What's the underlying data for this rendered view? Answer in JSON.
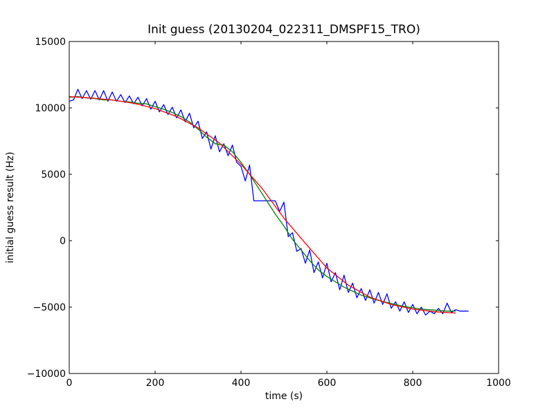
{
  "chart_data": {
    "type": "line",
    "title": "Init guess (20130204_022311_DMSPF15_TRO)",
    "xlabel": "time (s)",
    "ylabel": "initial guess result (Hz)",
    "xlim": [
      0,
      1000
    ],
    "ylim": [
      -10000,
      15000
    ],
    "xticks": [
      0,
      200,
      400,
      600,
      800,
      1000
    ],
    "yticks": [
      -10000,
      -5000,
      0,
      5000,
      10000,
      15000
    ],
    "xtick_labels": [
      "0",
      "200",
      "400",
      "600",
      "800",
      "1000"
    ],
    "ytick_labels": [
      "−10000",
      "−5000",
      "0",
      "5000",
      "10000",
      "15000"
    ],
    "grid": false,
    "legend": "none",
    "series": [
      {
        "color": "#0000ff",
        "style": "raw",
        "x": [
          0,
          10,
          20,
          30,
          40,
          50,
          60,
          70,
          80,
          90,
          100,
          110,
          120,
          130,
          140,
          150,
          160,
          170,
          180,
          190,
          200,
          210,
          220,
          230,
          240,
          250,
          260,
          270,
          280,
          290,
          300,
          310,
          320,
          330,
          340,
          350,
          360,
          370,
          380,
          390,
          400,
          410,
          420,
          430,
          440,
          450,
          460,
          470,
          480,
          490,
          500,
          510,
          520,
          530,
          540,
          550,
          560,
          570,
          580,
          590,
          600,
          610,
          620,
          630,
          640,
          650,
          660,
          670,
          680,
          690,
          700,
          710,
          720,
          730,
          740,
          750,
          760,
          770,
          780,
          790,
          800,
          810,
          820,
          830,
          840,
          850,
          860,
          870,
          880,
          890,
          900,
          910,
          920,
          930
        ],
        "y": [
          10500,
          10600,
          11400,
          10700,
          11300,
          10650,
          11300,
          10600,
          11300,
          10500,
          11200,
          10500,
          11000,
          10400,
          10900,
          10300,
          10800,
          10150,
          10700,
          9900,
          10500,
          9700,
          10250,
          9500,
          10050,
          9250,
          9850,
          8950,
          9600,
          8500,
          9000,
          7700,
          8200,
          6900,
          7900,
          6700,
          7300,
          6400,
          7200,
          5900,
          5600,
          4500,
          5700,
          3000,
          3000,
          3000,
          3000,
          3000,
          3000,
          2200,
          2900,
          300,
          600,
          -800,
          -600,
          -1700,
          -700,
          -2400,
          -1600,
          -2800,
          -1700,
          -3100,
          -2400,
          -3700,
          -2600,
          -3900,
          -3200,
          -4300,
          -3600,
          -4500,
          -3700,
          -4700,
          -3900,
          -4800,
          -4000,
          -5100,
          -4600,
          -5300,
          -4600,
          -5400,
          -4800,
          -5500,
          -5000,
          -5600,
          -5300,
          -5500,
          -5100,
          -5500,
          -4700,
          -5400,
          -5200,
          -5300,
          -5300,
          -5300
        ]
      },
      {
        "color": "#008000",
        "style": "smoothed",
        "x": [
          0,
          20,
          40,
          60,
          80,
          100,
          120,
          140,
          160,
          180,
          200,
          220,
          240,
          260,
          280,
          300,
          320,
          340,
          360,
          380,
          400,
          420,
          440,
          460,
          480,
          500,
          520,
          540,
          560,
          580,
          600,
          620,
          640,
          660,
          680,
          700,
          720,
          740,
          760,
          780,
          800,
          820,
          840,
          860,
          880,
          900
        ],
        "y": [
          10800,
          10850,
          10750,
          10700,
          10600,
          10600,
          10500,
          10450,
          10350,
          10300,
          10100,
          9900,
          9650,
          9350,
          8950,
          8400,
          7800,
          7300,
          7200,
          6700,
          5900,
          5000,
          4000,
          3000,
          2000,
          1100,
          100,
          -700,
          -1500,
          -2200,
          -2700,
          -3100,
          -3500,
          -3800,
          -4100,
          -4300,
          -4500,
          -4650,
          -4800,
          -4950,
          -5050,
          -5150,
          -5200,
          -5250,
          -5300,
          -5300
        ]
      },
      {
        "color": "#ff0000",
        "style": "fit",
        "x": [
          0,
          50,
          100,
          150,
          200,
          250,
          300,
          350,
          400,
          450,
          500,
          550,
          600,
          650,
          700,
          750,
          800,
          850,
          900
        ],
        "y": [
          10850,
          10750,
          10600,
          10350,
          9950,
          9350,
          8500,
          7350,
          5750,
          3900,
          1700,
          -200,
          -2050,
          -3350,
          -4250,
          -4800,
          -5150,
          -5350,
          -5450
        ]
      }
    ]
  }
}
